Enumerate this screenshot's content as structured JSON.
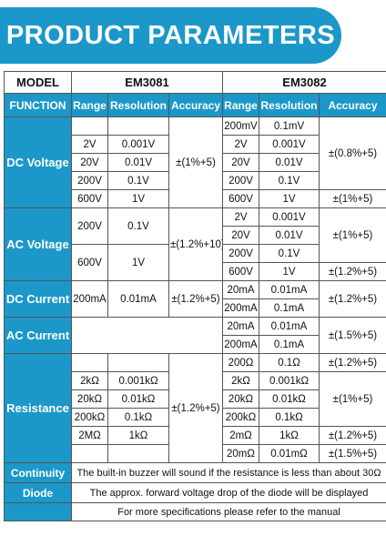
{
  "title": "PRODUCT PARAMETERS",
  "header": {
    "model_label": "MODEL",
    "model_a": "EM3081",
    "model_b": "EM3082",
    "function_label": "FUNCTION",
    "range": "Range",
    "resolution": "Resolution",
    "accuracy": "Accuracy"
  },
  "dc_voltage": {
    "label": "DC Voltage",
    "a_ranges": [
      "2V",
      "20V",
      "200V",
      "600V"
    ],
    "a_res": [
      "0.001V",
      "0.01V",
      "0.1V",
      "1V"
    ],
    "a_acc": "±(1%+5)",
    "b_ranges": [
      "200mV",
      "2V",
      "20V",
      "200V",
      "600V"
    ],
    "b_res": [
      "0.1mV",
      "0.001V",
      "0.01V",
      "0.1V",
      "1V"
    ],
    "b_acc1": "±(0.8%+5)",
    "b_acc2": "±(1%+5)"
  },
  "ac_voltage": {
    "label": "AC Voltage",
    "a_ranges": [
      "200V",
      "600V"
    ],
    "a_res": [
      "0.1V",
      "1V"
    ],
    "a_acc": "±(1.2%+10)",
    "b_ranges": [
      "2V",
      "20V",
      "200V",
      "600V"
    ],
    "b_res": [
      "0.001V",
      "0.01V",
      "0.1V",
      "1V"
    ],
    "b_acc1": "±(1%+5)",
    "b_acc2": "±(1.2%+5)"
  },
  "dc_current": {
    "label": "DC Current",
    "a_range": "200mA",
    "a_res": "0.01mA",
    "a_acc": "±(1.2%+5)",
    "b_ranges": [
      "20mA",
      "200mA"
    ],
    "b_res": [
      "0.01mA",
      "0.1mA"
    ],
    "b_acc": "±(1.2%+5)"
  },
  "ac_current": {
    "label": "AC Current",
    "b_ranges": [
      "20mA",
      "200mA"
    ],
    "b_res": [
      "0.01mA",
      "0.1mA"
    ],
    "b_acc": "±(1.5%+5)"
  },
  "resistance": {
    "label": "Resistance",
    "a_ranges": [
      "2kΩ",
      "20kΩ",
      "200kΩ",
      "2MΩ"
    ],
    "a_res": [
      "0.001kΩ",
      "0.01kΩ",
      "0.1kΩ",
      "1kΩ"
    ],
    "a_acc": "±(1.2%+5)",
    "b_ranges": [
      "200Ω",
      "2kΩ",
      "20kΩ",
      "200kΩ",
      "2mΩ",
      "20mΩ"
    ],
    "b_res": [
      "0.1Ω",
      "0.001kΩ",
      "0.01kΩ",
      "0.1kΩ",
      "1kΩ",
      "0.01mΩ"
    ],
    "b_acc1": "±(1.2%+5)",
    "b_acc2": "±(1%+5)",
    "b_acc3": "±(1.2%+5)",
    "b_acc4": "±(1.5%+5)"
  },
  "continuity": {
    "label": "Continuity",
    "text": "The built-in buzzer will sound if the resistance is less than about 30Ω"
  },
  "diode": {
    "label": "Diode",
    "text": "The approx. forward voltage drop of the diode will be displayed"
  },
  "footer_note": "For more specifications please refer to the manual",
  "colors": {
    "accent": "#1b98c9",
    "border": "#555555"
  }
}
